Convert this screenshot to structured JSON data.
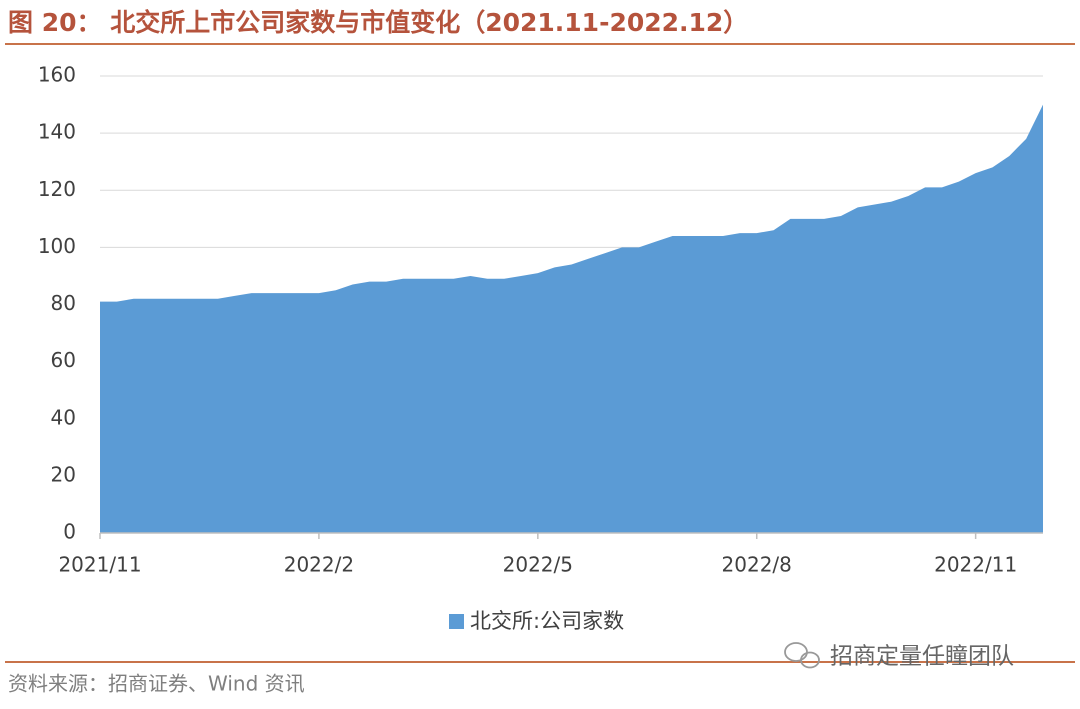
{
  "title": "图 20： 北交所上市公司家数与市值变化（2021.11-2022.12）",
  "chart_data": {
    "type": "area",
    "categories": [
      "2021/11",
      null,
      null,
      null,
      null,
      null,
      null,
      null,
      null,
      null,
      null,
      null,
      null,
      "2022/2",
      null,
      null,
      null,
      null,
      null,
      null,
      null,
      null,
      null,
      null,
      null,
      null,
      "2022/5",
      null,
      null,
      null,
      null,
      null,
      null,
      null,
      null,
      null,
      null,
      null,
      null,
      "2022/8",
      null,
      null,
      null,
      null,
      null,
      null,
      null,
      null,
      null,
      null,
      null,
      null,
      "2022/11",
      null,
      null,
      null,
      null
    ],
    "series": [
      {
        "name": "北交所:公司家数",
        "color": "#5b9bd5",
        "values": [
          81,
          81,
          82,
          82,
          82,
          82,
          82,
          82,
          83,
          84,
          84,
          84,
          84,
          84,
          85,
          87,
          88,
          88,
          89,
          89,
          89,
          89,
          90,
          89,
          89,
          90,
          91,
          93,
          94,
          96,
          98,
          100,
          100,
          102,
          104,
          104,
          104,
          104,
          105,
          105,
          106,
          110,
          110,
          110,
          111,
          114,
          115,
          116,
          118,
          121,
          121,
          123,
          126,
          128,
          132,
          138,
          150
        ]
      }
    ],
    "ylim": [
      0,
      160
    ],
    "yticks": [
      0,
      20,
      40,
      60,
      80,
      100,
      120,
      140,
      160
    ],
    "grid": true,
    "legend": "bottom"
  },
  "footer": {
    "source": "资料来源：招商证券、Wind 资讯",
    "watermark": "招商定量任瞳团队"
  }
}
